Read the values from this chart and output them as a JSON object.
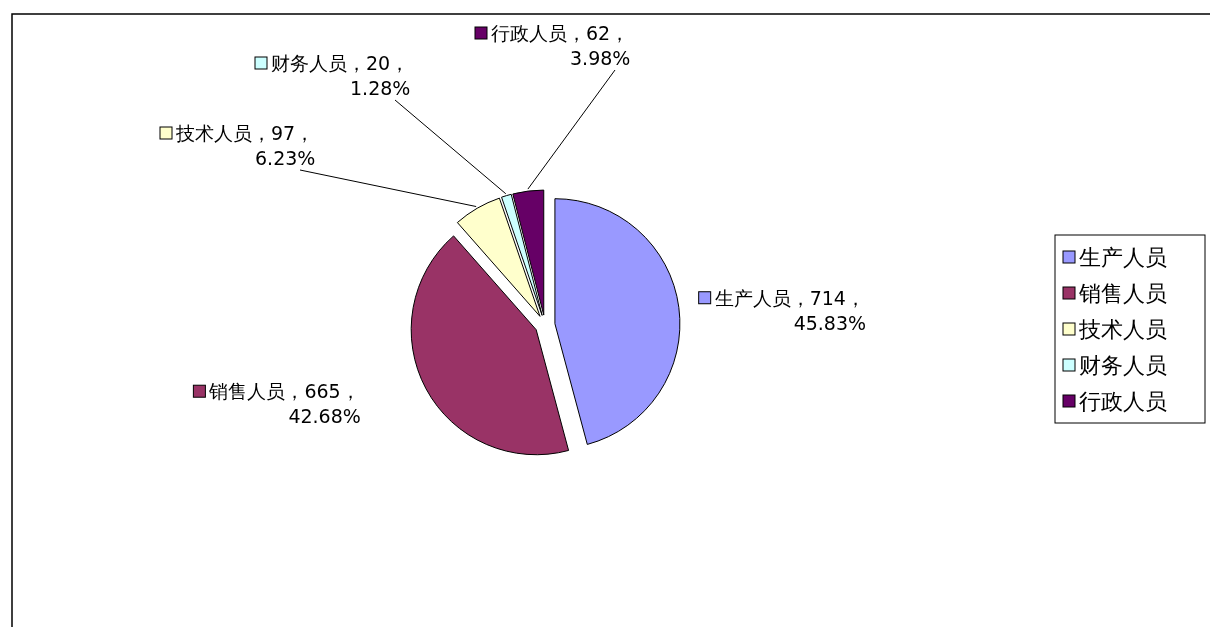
{
  "chart_data": {
    "type": "pie",
    "categories": [
      "生产人员",
      "销售人员",
      "技术人员",
      "财务人员",
      "行政人员"
    ],
    "values": [
      714,
      665,
      97,
      20,
      62
    ],
    "colors": [
      "#9999ff",
      "#993366",
      "#ffffcc",
      "#ccffff",
      "#660066"
    ],
    "value_labels": [
      "生产人员，714，45.83%",
      "销售人员，665，42.68%",
      "技术人员，97，6.23%",
      "财务人员，20，1.28%",
      "行政人员，62，3.98%"
    ],
    "legend": "right"
  }
}
